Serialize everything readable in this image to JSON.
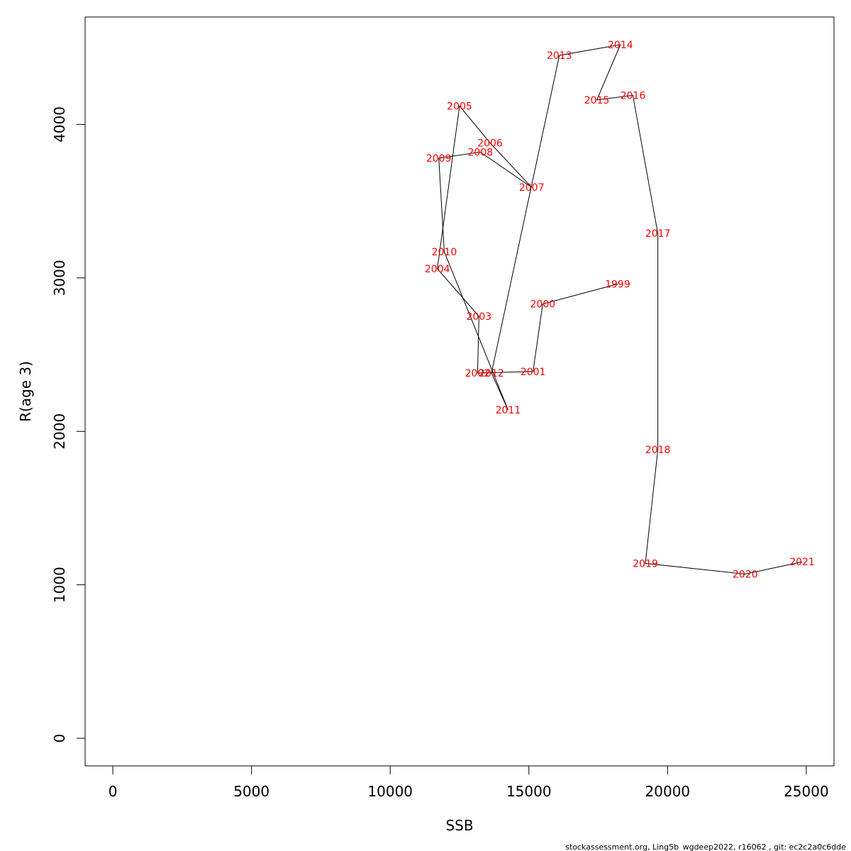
{
  "chart_data": {
    "type": "line",
    "title": "",
    "xlabel": "SSB",
    "ylabel": "R(age 3)",
    "xlim": [
      -1000,
      26000
    ],
    "ylim": [
      -180,
      4700
    ],
    "xticks": [
      "0",
      "5000",
      "10000",
      "15000",
      "20000",
      "25000"
    ],
    "yticks": [
      "0",
      "1000",
      "2000",
      "3000",
      "4000"
    ],
    "grid": false,
    "legend": "none",
    "label_color": "#ff0000",
    "line_color": "#000000",
    "points": [
      {
        "label": "1999",
        "x": 18200,
        "y": 2960
      },
      {
        "label": "2000",
        "x": 15500,
        "y": 2830
      },
      {
        "label": "2001",
        "x": 15150,
        "y": 2390
      },
      {
        "label": "2002",
        "x": 13150,
        "y": 2380
      },
      {
        "label": "2003",
        "x": 13200,
        "y": 2750
      },
      {
        "label": "2004",
        "x": 11700,
        "y": 3060
      },
      {
        "label": "2005",
        "x": 12500,
        "y": 4120
      },
      {
        "label": "2006",
        "x": 13600,
        "y": 3880
      },
      {
        "label": "2007",
        "x": 15100,
        "y": 3590
      },
      {
        "label": "2008",
        "x": 13250,
        "y": 3820
      },
      {
        "label": "2009",
        "x": 11750,
        "y": 3780
      },
      {
        "label": "2010",
        "x": 11950,
        "y": 3170
      },
      {
        "label": "2011",
        "x": 14250,
        "y": 2140
      },
      {
        "label": "2012",
        "x": 13650,
        "y": 2380
      },
      {
        "label": "2013",
        "x": 16100,
        "y": 4450
      },
      {
        "label": "2014",
        "x": 18300,
        "y": 4520
      },
      {
        "label": "2015",
        "x": 17450,
        "y": 4160
      },
      {
        "label": "2016",
        "x": 18750,
        "y": 4190
      },
      {
        "label": "2017",
        "x": 19650,
        "y": 3290
      },
      {
        "label": "2018",
        "x": 19650,
        "y": 1880
      },
      {
        "label": "2019",
        "x": 19200,
        "y": 1140
      },
      {
        "label": "2020",
        "x": 22800,
        "y": 1070
      },
      {
        "label": "2021",
        "x": 24850,
        "y": 1150
      }
    ]
  },
  "footer": "stockassessment.org, Ling5b_wgdeep2022, r16062 , git: ec2c2a0c6dde"
}
